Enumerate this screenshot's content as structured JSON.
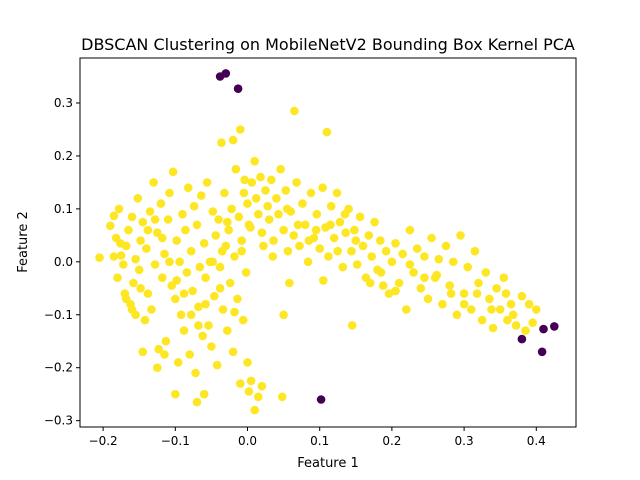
{
  "chart_data": {
    "type": "scatter",
    "title": "DBSCAN Clustering on MobileNetV2 Bounding Box Kernel PCA",
    "xlabel": "Feature 1",
    "ylabel": "Feature 2",
    "xlim": [
      -0.232,
      0.455
    ],
    "ylim": [
      -0.312,
      0.385
    ],
    "xticks": [
      -0.2,
      -0.1,
      0.0,
      0.1,
      0.2,
      0.3,
      0.4
    ],
    "xtick_labels": [
      "−0.2",
      "−0.1",
      "0.0",
      "0.1",
      "0.2",
      "0.3",
      "0.4"
    ],
    "yticks": [
      -0.3,
      -0.2,
      -0.1,
      0.0,
      0.1,
      0.2,
      0.3
    ],
    "ytick_labels": [
      "−0.3",
      "−0.2",
      "−0.1",
      "0.0",
      "0.1",
      "0.2",
      "0.3"
    ],
    "grid": false,
    "legend": false,
    "colors": {
      "cluster": "#fde725",
      "noise": "#440154"
    },
    "series": [
      {
        "color_key": "noise",
        "points": [
          [
            -0.038,
            0.35
          ],
          [
            -0.03,
            0.356
          ],
          [
            -0.013,
            0.327
          ],
          [
            0.102,
            -0.26
          ],
          [
            0.38,
            -0.146
          ],
          [
            0.408,
            -0.17
          ],
          [
            0.41,
            -0.127
          ],
          [
            0.425,
            -0.122
          ]
        ]
      },
      {
        "color_key": "cluster",
        "points": [
          [
            -0.205,
            0.008
          ],
          [
            -0.19,
            0.068
          ],
          [
            -0.185,
            0.087
          ],
          [
            -0.182,
            0.045
          ],
          [
            -0.178,
            0.1
          ],
          [
            -0.175,
            0.012
          ],
          [
            -0.172,
            -0.005
          ],
          [
            -0.168,
            0.03
          ],
          [
            -0.165,
            0.06
          ],
          [
            -0.162,
            -0.08
          ],
          [
            -0.16,
            0.085
          ],
          [
            -0.158,
            -0.04
          ],
          [
            -0.155,
            0.005
          ],
          [
            -0.152,
            0.12
          ],
          [
            -0.15,
            -0.015
          ],
          [
            -0.148,
            0.04
          ],
          [
            -0.145,
            0.075
          ],
          [
            -0.142,
            -0.11
          ],
          [
            -0.14,
            0.025
          ],
          [
            -0.138,
            -0.06
          ],
          [
            -0.135,
            0.095
          ],
          [
            -0.133,
            -0.09
          ],
          [
            -0.13,
            0.15
          ],
          [
            -0.128,
            -0.005
          ],
          [
            -0.125,
            0.055
          ],
          [
            -0.123,
            -0.165
          ],
          [
            -0.12,
            0.11
          ],
          [
            -0.118,
            -0.03
          ],
          [
            -0.115,
            0.015
          ],
          [
            -0.113,
            -0.15
          ],
          [
            -0.11,
            0.08
          ],
          [
            -0.108,
            0.13
          ],
          [
            -0.105,
            -0.045
          ],
          [
            -0.103,
            0.17
          ],
          [
            -0.1,
            -0.07
          ],
          [
            -0.098,
            0.04
          ],
          [
            -0.096,
            -0.19
          ],
          [
            -0.094,
            0.0
          ],
          [
            -0.092,
            -0.1
          ],
          [
            -0.09,
            0.09
          ],
          [
            -0.088,
            -0.13
          ],
          [
            -0.086,
            0.06
          ],
          [
            -0.084,
            -0.02
          ],
          [
            -0.082,
            0.14
          ],
          [
            -0.08,
            -0.175
          ],
          [
            -0.078,
            0.02
          ],
          [
            -0.076,
            -0.055
          ],
          [
            -0.074,
            0.105
          ],
          [
            -0.072,
            -0.21
          ],
          [
            -0.07,
            0.07
          ],
          [
            -0.068,
            -0.085
          ],
          [
            -0.066,
            -0.01
          ],
          [
            -0.064,
            0.125
          ],
          [
            -0.062,
            -0.14
          ],
          [
            -0.06,
            0.035
          ],
          [
            -0.058,
            -0.03
          ],
          [
            -0.056,
            0.15
          ],
          [
            -0.054,
            -0.12
          ],
          [
            -0.052,
            0.0
          ],
          [
            -0.05,
            -0.16
          ],
          [
            -0.048,
            0.095
          ],
          [
            -0.046,
            -0.065
          ],
          [
            -0.044,
            0.05
          ],
          [
            -0.042,
            -0.195
          ],
          [
            -0.04,
            0.08
          ],
          [
            -0.038,
            -0.01
          ],
          [
            -0.036,
            0.225
          ],
          [
            -0.034,
            -0.09
          ],
          [
            -0.032,
            0.13
          ],
          [
            -0.03,
            0.03
          ],
          [
            -0.028,
            -0.13
          ],
          [
            -0.026,
            0.06
          ],
          [
            -0.024,
            -0.04
          ],
          [
            -0.022,
            0.1
          ],
          [
            -0.02,
            -0.17
          ],
          [
            -0.018,
            0.01
          ],
          [
            -0.016,
            0.175
          ],
          [
            -0.014,
            -0.07
          ],
          [
            -0.012,
            0.085
          ],
          [
            -0.01,
            -0.23
          ],
          [
            -0.008,
            0.04
          ],
          [
            -0.006,
            -0.11
          ],
          [
            -0.004,
            0.155
          ],
          [
            -0.002,
            -0.02
          ],
          [
            0.0,
            0.11
          ],
          [
            0.002,
            -0.245
          ],
          [
            0.004,
            0.065
          ],
          [
            0.006,
            0.15
          ],
          [
            0.01,
            0.19
          ],
          [
            0.012,
            0.12
          ],
          [
            0.015,
            0.09
          ],
          [
            0.018,
            0.16
          ],
          [
            0.02,
            0.055
          ],
          [
            0.025,
            0.135
          ],
          [
            0.028,
            0.105
          ],
          [
            0.03,
            0.08
          ],
          [
            0.033,
            0.155
          ],
          [
            0.036,
            0.04
          ],
          [
            0.04,
            0.12
          ],
          [
            0.043,
            0.09
          ],
          [
            0.046,
            0.175
          ],
          [
            0.05,
            0.06
          ],
          [
            0.053,
            0.135
          ],
          [
            0.056,
            0.02
          ],
          [
            0.06,
            0.095
          ],
          [
            0.064,
            0.05
          ],
          [
            0.068,
            0.15
          ],
          [
            0.072,
            0.03
          ],
          [
            0.076,
            0.11
          ],
          [
            0.08,
            0.07
          ],
          [
            0.084,
            0.0
          ],
          [
            0.088,
            0.13
          ],
          [
            0.092,
            0.045
          ],
          [
            0.096,
            0.09
          ],
          [
            0.1,
            0.025
          ],
          [
            0.104,
            0.14
          ],
          [
            0.108,
            0.065
          ],
          [
            0.112,
            0.01
          ],
          [
            0.116,
            0.105
          ],
          [
            0.12,
            0.045
          ],
          [
            0.124,
            0.13
          ],
          [
            0.128,
            0.075
          ],
          [
            0.132,
            -0.01
          ],
          [
            0.136,
            0.055
          ],
          [
            0.14,
            0.1
          ],
          [
            0.144,
            0.02
          ],
          [
            0.148,
            0.06
          ],
          [
            0.152,
            -0.005
          ],
          [
            0.156,
            0.085
          ],
          [
            0.16,
            0.03
          ],
          [
            0.164,
            -0.03
          ],
          [
            0.168,
            0.05
          ],
          [
            0.172,
            0.01
          ],
          [
            0.176,
            0.075
          ],
          [
            0.18,
            -0.015
          ],
          [
            0.184,
            0.04
          ],
          [
            0.188,
            -0.045
          ],
          [
            0.192,
            0.02
          ],
          [
            0.196,
            -0.06
          ],
          [
            0.2,
            0.0
          ],
          [
            0.205,
            0.035
          ],
          [
            0.21,
            -0.04
          ],
          [
            0.215,
            0.015
          ],
          [
            0.22,
            -0.09
          ],
          [
            0.225,
            0.06
          ],
          [
            0.23,
            -0.02
          ],
          [
            0.235,
            0.025
          ],
          [
            0.24,
            -0.05
          ],
          [
            0.245,
            0.01
          ],
          [
            0.25,
            -0.07
          ],
          [
            0.255,
            0.045
          ],
          [
            0.26,
            -0.03
          ],
          [
            0.265,
            0.005
          ],
          [
            0.27,
            -0.08
          ],
          [
            0.275,
            0.03
          ],
          [
            0.28,
            -0.045
          ],
          [
            0.285,
            0.0
          ],
          [
            0.29,
            -0.1
          ],
          [
            0.295,
            0.05
          ],
          [
            0.3,
            -0.06
          ],
          [
            0.305,
            -0.01
          ],
          [
            0.31,
            -0.09
          ],
          [
            0.315,
            0.02
          ],
          [
            0.32,
            -0.04
          ],
          [
            0.325,
            -0.11
          ],
          [
            0.33,
            -0.02
          ],
          [
            0.335,
            -0.07
          ],
          [
            0.34,
            -0.125
          ],
          [
            0.345,
            -0.05
          ],
          [
            0.35,
            -0.09
          ],
          [
            0.355,
            -0.03
          ],
          [
            0.36,
            -0.11
          ],
          [
            0.365,
            -0.08
          ],
          [
            0.372,
            -0.12
          ],
          [
            0.38,
            -0.065
          ],
          [
            0.0,
            -0.19
          ],
          [
            0.005,
            -0.225
          ],
          [
            0.01,
            -0.28
          ],
          [
            0.015,
            -0.255
          ],
          [
            0.02,
            -0.235
          ],
          [
            0.048,
            -0.255
          ],
          [
            0.05,
            -0.1
          ],
          [
            0.058,
            -0.04
          ],
          [
            0.065,
            0.285
          ],
          [
            0.105,
            -0.035
          ],
          [
            0.11,
            0.245
          ],
          [
            0.145,
            -0.12
          ],
          [
            -0.01,
            0.25
          ],
          [
            -0.02,
            0.23
          ],
          [
            -0.005,
            0.13
          ],
          [
            -0.035,
            0.02
          ],
          [
            -0.115,
            -0.175
          ],
          [
            -0.1,
            -0.25
          ],
          [
            -0.07,
            -0.265
          ],
          [
            -0.06,
            -0.25
          ],
          [
            -0.145,
            -0.17
          ],
          [
            -0.125,
            -0.2
          ],
          [
            -0.16,
            -0.09
          ],
          [
            -0.17,
            -0.06
          ],
          [
            -0.18,
            -0.03
          ],
          [
            -0.185,
            0.01
          ],
          [
            -0.176,
            0.035
          ],
          [
            -0.168,
            -0.07
          ],
          [
            -0.155,
            -0.1
          ],
          [
            -0.148,
            -0.05
          ],
          [
            -0.138,
            0.06
          ],
          [
            -0.128,
            0.08
          ],
          [
            -0.118,
            0.045
          ],
          [
            -0.108,
            0.0
          ],
          [
            -0.098,
            -0.035
          ],
          [
            -0.088,
            -0.06
          ],
          [
            -0.078,
            -0.1
          ],
          [
            -0.068,
            -0.12
          ],
          [
            -0.058,
            -0.08
          ],
          [
            -0.048,
            0.0
          ],
          [
            -0.038,
            -0.05
          ],
          [
            -0.028,
            0.075
          ],
          [
            -0.018,
            -0.095
          ],
          [
            -0.008,
            0.02
          ],
          [
            0.002,
            0.07
          ],
          [
            0.022,
            0.03
          ],
          [
            0.035,
            0.01
          ],
          [
            0.055,
            0.1
          ],
          [
            0.07,
            0.07
          ],
          [
            0.085,
            0.04
          ],
          [
            0.095,
            0.06
          ],
          [
            0.115,
            0.07
          ],
          [
            0.125,
            0.02
          ],
          [
            0.135,
            0.09
          ],
          [
            0.15,
            0.04
          ],
          [
            0.17,
            -0.04
          ],
          [
            0.185,
            -0.02
          ],
          [
            0.205,
            -0.055
          ],
          [
            0.225,
            -0.005
          ],
          [
            0.245,
            -0.03
          ],
          [
            0.262,
            -0.025
          ],
          [
            0.282,
            -0.06
          ],
          [
            0.3,
            -0.08
          ],
          [
            0.318,
            -0.06
          ],
          [
            0.338,
            -0.09
          ],
          [
            0.358,
            -0.06
          ],
          [
            0.368,
            -0.1
          ],
          [
            0.39,
            -0.08
          ],
          [
            0.395,
            -0.115
          ],
          [
            0.4,
            -0.09
          ],
          [
            0.385,
            -0.13
          ]
        ]
      }
    ]
  }
}
